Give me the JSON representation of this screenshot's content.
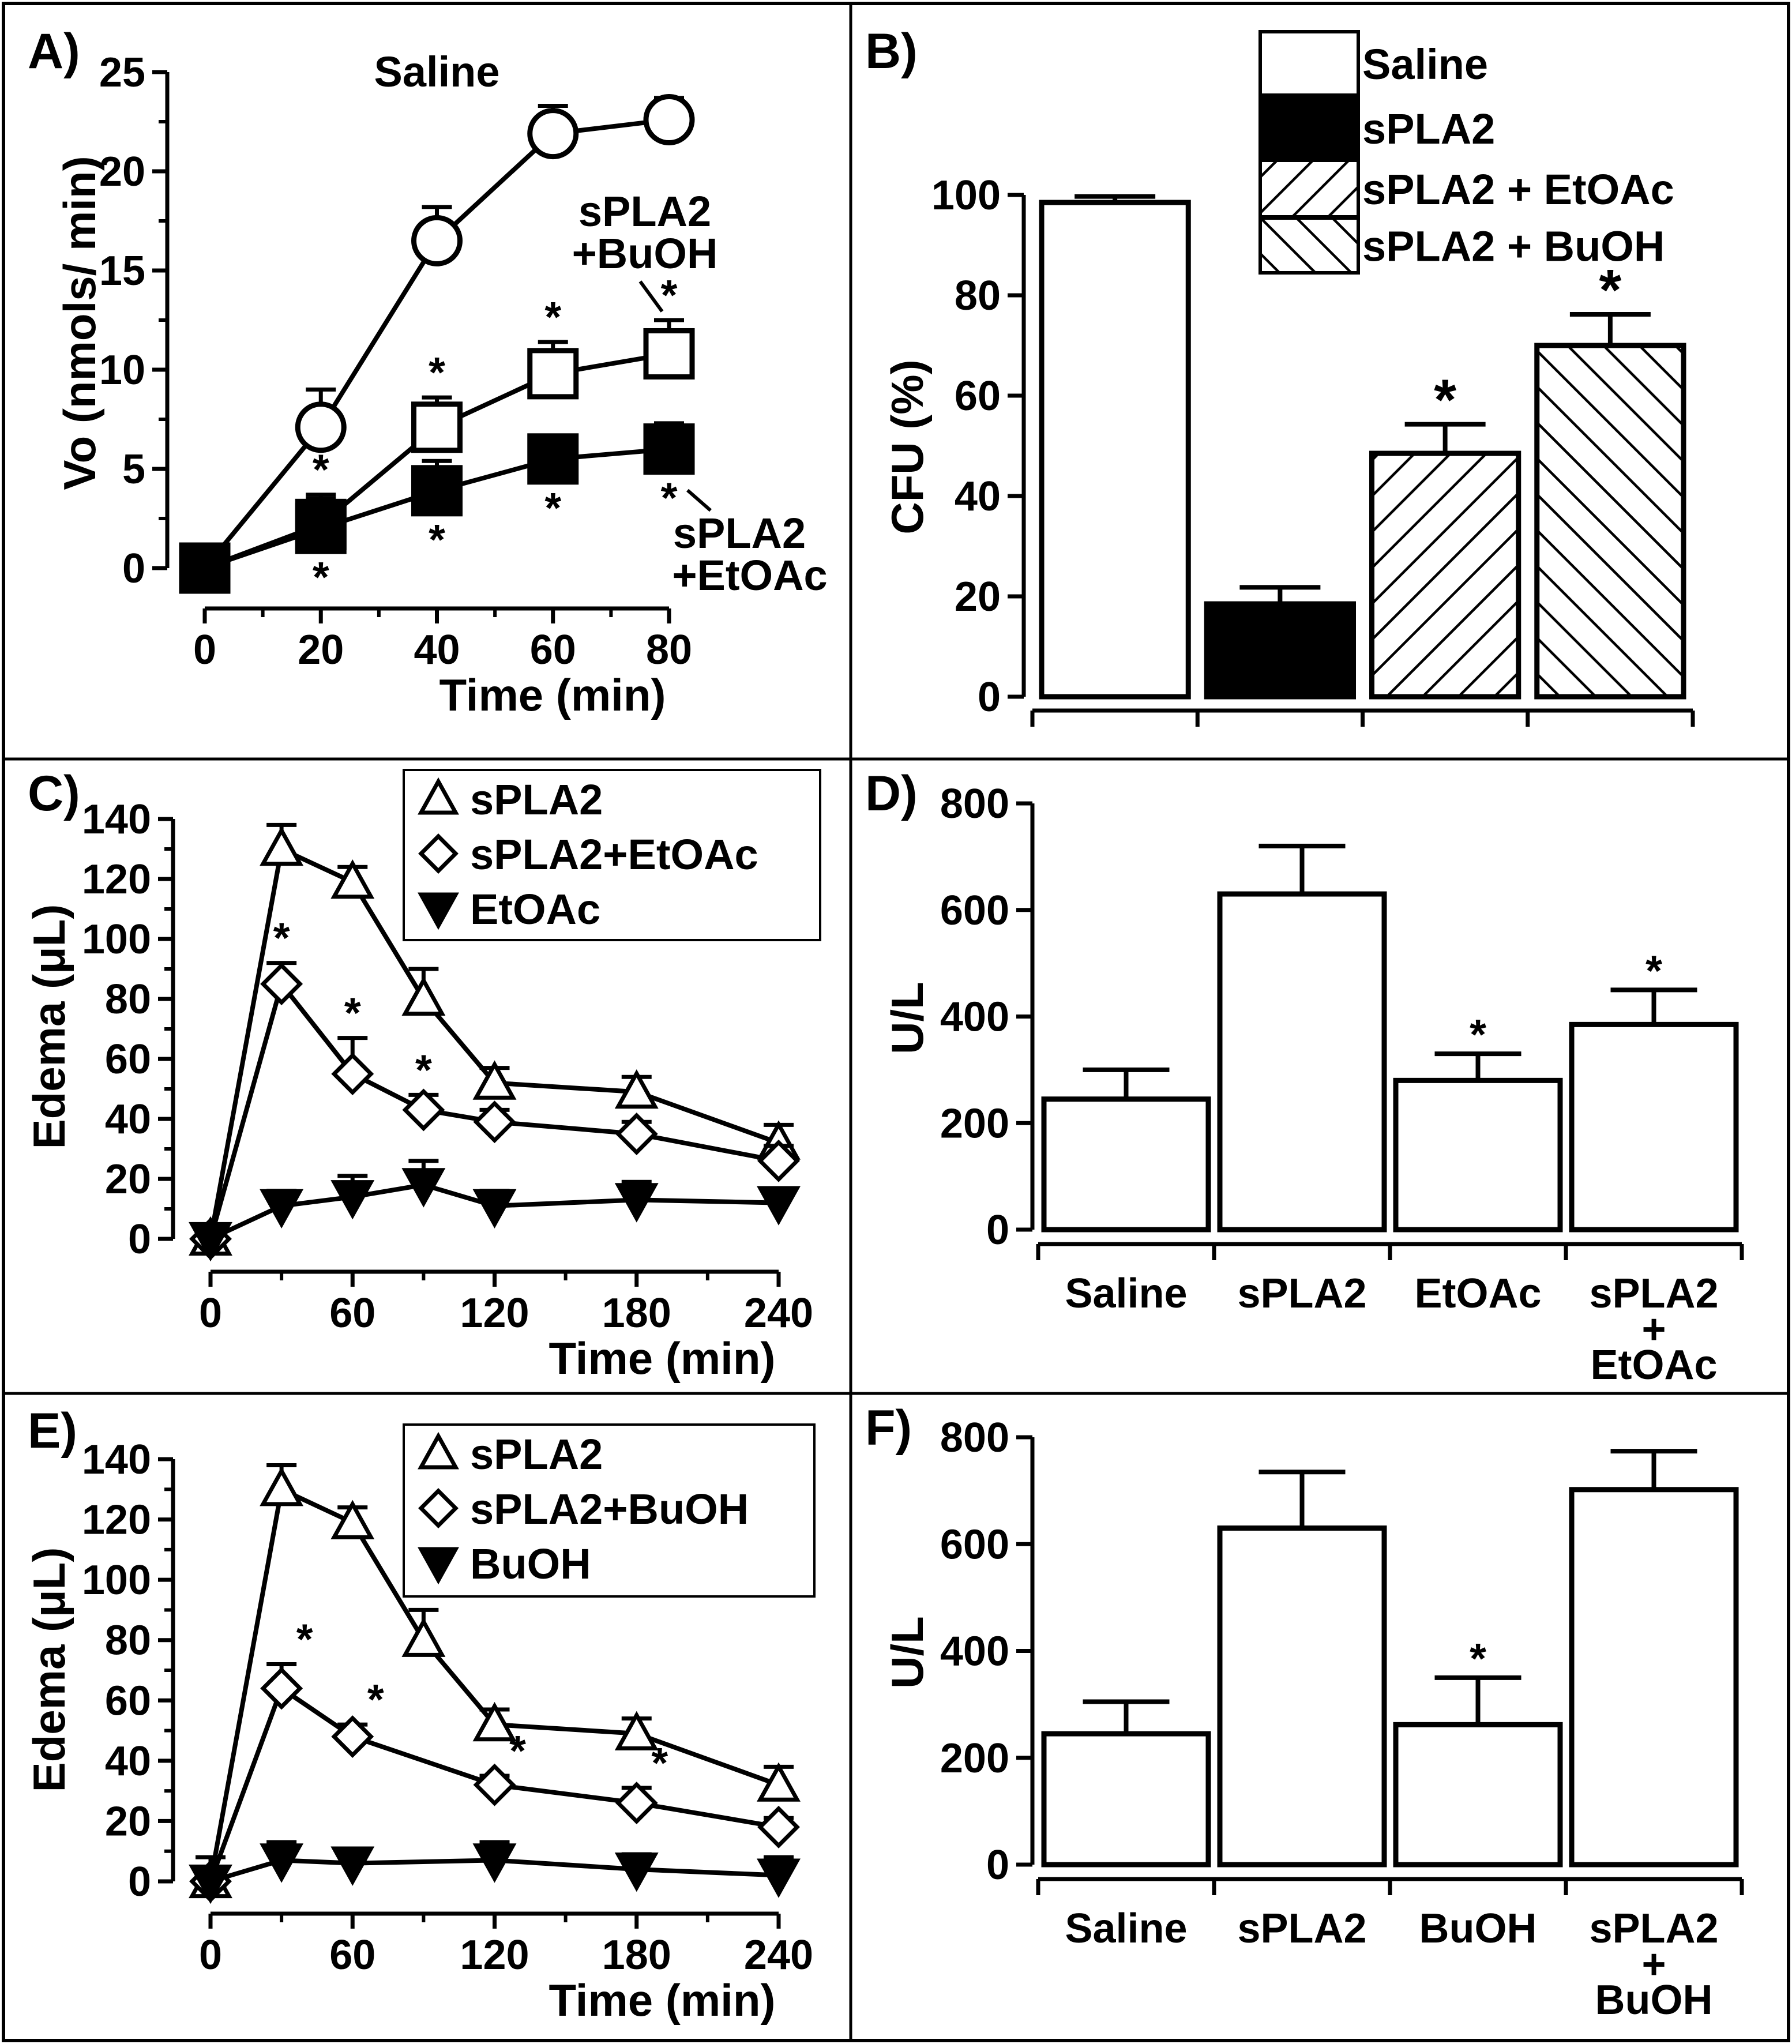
{
  "chart_data": [
    {
      "panel": "A)",
      "type": "line",
      "xlabel": "Time (min)",
      "ylabel": "Vo (nmols/ min)",
      "xlim": [
        0,
        80
      ],
      "ylim": [
        0,
        25
      ],
      "xticks": [
        0,
        20,
        40,
        60,
        80
      ],
      "yticks": [
        0,
        5,
        10,
        15,
        20,
        25
      ],
      "x": [
        0,
        20,
        40,
        60,
        80
      ],
      "series": [
        {
          "name": "Saline",
          "marker": "circle",
          "fill": "#ffffff",
          "values": [
            0,
            7.1,
            16.5,
            21.9,
            22.6
          ],
          "err": [
            0,
            1.9,
            1.7,
            1.4,
            1.1
          ]
        },
        {
          "name": "sPLA2\n+BuOH",
          "marker": "square",
          "fill": "#ffffff",
          "values": [
            0,
            2.2,
            7.1,
            9.8,
            10.8
          ],
          "err": [
            0,
            1.5,
            1.5,
            1.6,
            1.7
          ],
          "stars": [
            false,
            true,
            true,
            true,
            true
          ],
          "star_pos": "above"
        },
        {
          "name": "sPLA2\n+EtOAc",
          "marker": "square",
          "fill": "#000000",
          "values": [
            0,
            2.0,
            3.9,
            5.5,
            6.0
          ],
          "err": [
            0,
            1.5,
            1.5,
            1.0,
            1.3
          ],
          "stars": [
            false,
            true,
            true,
            true,
            true
          ],
          "star_pos": "below"
        }
      ]
    },
    {
      "panel": "B)",
      "type": "bar",
      "ylabel": "CFU (%)",
      "ylim": [
        0,
        100
      ],
      "yticks": [
        0,
        20,
        40,
        60,
        80,
        100
      ],
      "categories": [
        "Saline",
        "sPLA2",
        "sPLA2 + EtOAc",
        "sPLA2 + BuOH"
      ],
      "values": [
        98.5,
        18.5,
        48.5,
        70.0
      ],
      "err": [
        1.2,
        3.3,
        5.8,
        6.2
      ],
      "patterns": [
        "white",
        "black",
        "hatch-right",
        "hatch-left"
      ],
      "stars": [
        false,
        false,
        true,
        true
      ],
      "legend": [
        "Saline",
        "sPLA2",
        "sPLA2 + EtOAc",
        "sPLA2 + BuOH"
      ]
    },
    {
      "panel": "C)",
      "type": "line",
      "xlabel": "Time (min)",
      "ylabel": "Edema (μL)",
      "xlim": [
        0,
        240
      ],
      "ylim": [
        0,
        140
      ],
      "xticks": [
        0,
        60,
        120,
        180,
        240
      ],
      "yticks": [
        0,
        20,
        40,
        60,
        80,
        100,
        120,
        140
      ],
      "x": [
        0,
        30,
        60,
        90,
        120,
        180,
        240
      ],
      "legend": [
        "sPLA2",
        "sPLA2+EtOAc",
        "EtOAc"
      ],
      "series": [
        {
          "name": "sPLA2",
          "marker": "triangle-up",
          "fill": "#ffffff",
          "values": [
            0,
            130,
            119,
            80,
            52,
            49,
            32
          ],
          "err": [
            0,
            8,
            5,
            10,
            5,
            5,
            6
          ]
        },
        {
          "name": "sPLA2+EtOAc",
          "marker": "diamond",
          "fill": "#ffffff",
          "values": [
            0,
            85,
            55,
            43,
            39,
            35,
            26
          ],
          "err": [
            0,
            7,
            12,
            5,
            4,
            4,
            5
          ],
          "stars": [
            false,
            true,
            true,
            true,
            false,
            false,
            false
          ]
        },
        {
          "name": "EtOAc",
          "marker": "triangle-down",
          "fill": "#000000",
          "values": [
            0,
            11,
            14,
            18,
            11,
            13,
            12
          ],
          "err": [
            0,
            5,
            7,
            8,
            5,
            6,
            4
          ]
        }
      ]
    },
    {
      "panel": "D)",
      "type": "bar",
      "ylabel": "U/L",
      "ylim": [
        0,
        800
      ],
      "yticks": [
        0,
        200,
        400,
        600,
        800
      ],
      "categories": [
        "Saline",
        "sPLA2",
        "EtOAc",
        "sPLA2\n+\nEtOAc"
      ],
      "values": [
        245,
        630,
        280,
        385
      ],
      "err": [
        55,
        90,
        50,
        65
      ],
      "stars": [
        false,
        false,
        true,
        true
      ]
    },
    {
      "panel": "E)",
      "type": "line",
      "xlabel": "Time (min)",
      "ylabel": "Edema (μL)",
      "xlim": [
        0,
        240
      ],
      "ylim": [
        0,
        140
      ],
      "xticks": [
        0,
        60,
        120,
        180,
        240
      ],
      "yticks": [
        0,
        20,
        40,
        60,
        80,
        100,
        120,
        140
      ],
      "x": [
        0,
        30,
        60,
        90,
        120,
        180,
        240
      ],
      "legend": [
        "sPLA2",
        "sPLA2+BuOH",
        "BuOH"
      ],
      "series": [
        {
          "name": "sPLA2",
          "marker": "triangle-up",
          "fill": "#ffffff",
          "values": [
            0,
            130,
            119,
            80,
            52,
            49,
            32
          ],
          "err": [
            0,
            8,
            5,
            10,
            5,
            5,
            6
          ]
        },
        {
          "name": "sPLA2+BuOH",
          "x": [
            0,
            30,
            60,
            120,
            180,
            240
          ],
          "marker": "diamond",
          "fill": "#ffffff",
          "values": [
            0,
            64,
            48,
            32,
            26,
            18
          ],
          "err": [
            0,
            8,
            4,
            3,
            5,
            3
          ],
          "stars": [
            false,
            true,
            true,
            true,
            true,
            false
          ]
        },
        {
          "name": "BuOH",
          "x": [
            0,
            30,
            60,
            120,
            180,
            240
          ],
          "marker": "triangle-down",
          "fill": "#000000",
          "values": [
            0,
            7,
            6,
            7,
            4,
            2
          ],
          "err": [
            8,
            6,
            4,
            6,
            5,
            6
          ]
        }
      ]
    },
    {
      "panel": "F)",
      "type": "bar",
      "ylabel": "U/L",
      "ylim": [
        0,
        800
      ],
      "yticks": [
        0,
        200,
        400,
        600,
        800
      ],
      "categories": [
        "Saline",
        "sPLA2",
        "BuOH",
        "sPLA2\n+\nBuOH"
      ],
      "values": [
        245,
        630,
        262,
        702
      ],
      "err": [
        60,
        105,
        88,
        72
      ],
      "stars": [
        false,
        false,
        true,
        false
      ]
    }
  ]
}
